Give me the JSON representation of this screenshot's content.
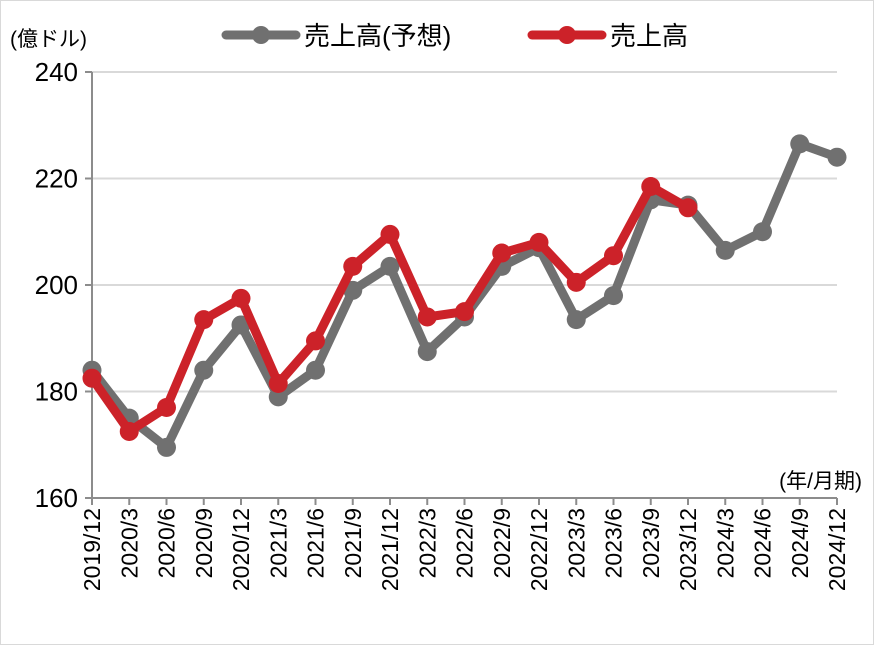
{
  "chart_data": {
    "type": "line",
    "ylabel": "(億ドル)",
    "xlabel": "(年/月期)",
    "ylim": [
      160,
      240
    ],
    "yticks": [
      160,
      180,
      200,
      220,
      240
    ],
    "grid": true,
    "legend_position": "top",
    "categories": [
      "2019/12",
      "2020/3",
      "2020/6",
      "2020/9",
      "2020/12",
      "2021/3",
      "2021/6",
      "2021/9",
      "2021/12",
      "2022/3",
      "2022/6",
      "2022/9",
      "2022/12",
      "2023/3",
      "2023/6",
      "2023/9",
      "2023/12",
      "2024/3",
      "2024/6",
      "2024/9",
      "2024/12"
    ],
    "series": [
      {
        "name": "売上高(予想)",
        "color": "#707070",
        "values": [
          184,
          175,
          169.5,
          184,
          192.5,
          179,
          184,
          199,
          203.5,
          187.5,
          194,
          203.5,
          207,
          193.5,
          198,
          216,
          215,
          206.5,
          210,
          226.5,
          224
        ]
      },
      {
        "name": "売上高",
        "color": "#cc2229",
        "values": [
          182.5,
          172.5,
          177,
          193.5,
          197.5,
          181.5,
          189.5,
          203.5,
          209.5,
          194,
          195,
          206,
          208,
          200.5,
          205.5,
          218.5,
          214.5,
          null,
          null,
          null,
          null
        ]
      }
    ]
  }
}
